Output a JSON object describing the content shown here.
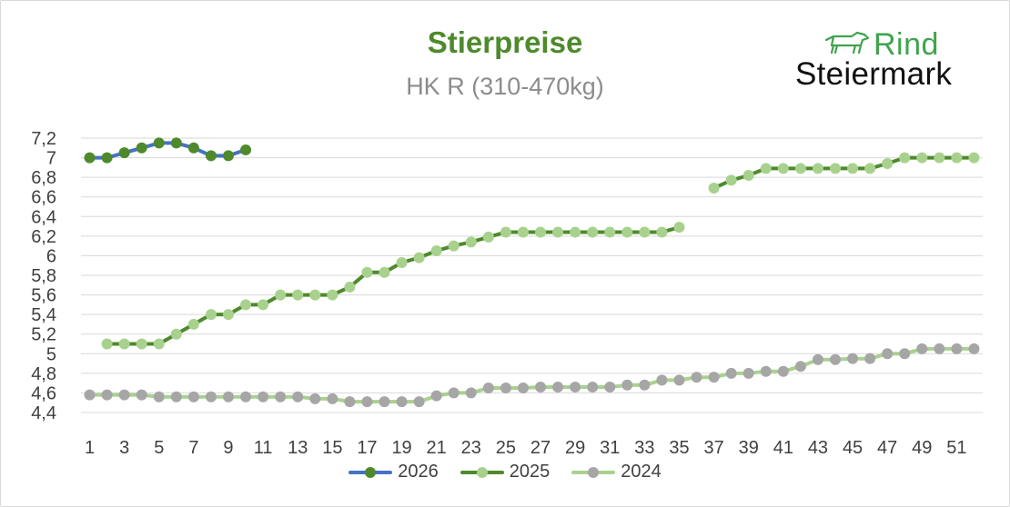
{
  "chart_data": {
    "type": "line",
    "title": "Stierpreise",
    "subtitle": "HK R (310-470kg)",
    "xlabel": "",
    "ylabel": "",
    "x": [
      1,
      2,
      3,
      4,
      5,
      6,
      7,
      8,
      9,
      10,
      11,
      12,
      13,
      14,
      15,
      16,
      17,
      18,
      19,
      20,
      21,
      22,
      23,
      24,
      25,
      26,
      27,
      28,
      29,
      30,
      31,
      32,
      33,
      34,
      35,
      36,
      37,
      38,
      39,
      40,
      41,
      42,
      43,
      44,
      45,
      46,
      47,
      48,
      49,
      50,
      51,
      52
    ],
    "x_tick_labels": [
      "1",
      "3",
      "5",
      "7",
      "9",
      "11",
      "13",
      "15",
      "17",
      "19",
      "21",
      "23",
      "25",
      "27",
      "29",
      "31",
      "33",
      "35",
      "37",
      "39",
      "41",
      "43",
      "45",
      "47",
      "49",
      "51"
    ],
    "y_tick_labels": [
      "4,4",
      "4,6",
      "4,8",
      "5",
      "5,2",
      "5,4",
      "5,6",
      "5,8",
      "6",
      "6,2",
      "6,4",
      "6,6",
      "6,8",
      "7",
      "7,2"
    ],
    "ylim": [
      4.4,
      7.2
    ],
    "grid": true,
    "legend_position": "bottom",
    "series": [
      {
        "name": "2026",
        "line_color": "#4472c4",
        "marker_color": "#4e8a2c",
        "values": [
          7.0,
          7.0,
          7.05,
          7.1,
          7.15,
          7.15,
          7.1,
          7.02,
          7.02,
          7.08,
          null,
          null,
          null,
          null,
          null,
          null,
          null,
          null,
          null,
          null,
          null,
          null,
          null,
          null,
          null,
          null,
          null,
          null,
          null,
          null,
          null,
          null,
          null,
          null,
          null,
          null,
          null,
          null,
          null,
          null,
          null,
          null,
          null,
          null,
          null,
          null,
          null,
          null,
          null,
          null,
          null,
          null
        ]
      },
      {
        "name": "2025",
        "line_color": "#4e8a2c",
        "marker_color": "#a9d18e",
        "values": [
          null,
          5.1,
          5.1,
          5.1,
          5.1,
          5.2,
          5.3,
          5.4,
          5.4,
          5.5,
          5.5,
          5.6,
          5.6,
          5.6,
          5.6,
          5.68,
          5.83,
          5.83,
          5.93,
          5.98,
          6.05,
          6.1,
          6.14,
          6.19,
          6.24,
          6.24,
          6.24,
          6.24,
          6.24,
          6.24,
          6.24,
          6.24,
          6.24,
          6.24,
          6.29,
          null,
          6.69,
          6.77,
          6.82,
          6.89,
          6.89,
          6.89,
          6.89,
          6.89,
          6.89,
          6.89,
          6.94,
          7.0,
          7.0,
          7.0,
          7.0,
          7.0
        ]
      },
      {
        "name": "2024",
        "line_color": "#a9d18e",
        "marker_color": "#a6a6a6",
        "values": [
          4.58,
          4.58,
          4.58,
          4.58,
          4.56,
          4.56,
          4.56,
          4.56,
          4.56,
          4.56,
          4.56,
          4.56,
          4.56,
          4.54,
          4.54,
          4.51,
          4.51,
          4.51,
          4.51,
          4.51,
          4.57,
          4.6,
          4.6,
          4.65,
          4.65,
          4.65,
          4.66,
          4.66,
          4.66,
          4.66,
          4.66,
          4.68,
          4.68,
          4.73,
          4.73,
          4.76,
          4.76,
          4.8,
          4.8,
          4.82,
          4.82,
          4.87,
          4.94,
          4.94,
          4.95,
          4.95,
          5.0,
          5.0,
          5.05,
          5.05,
          5.05,
          5.05
        ]
      }
    ]
  },
  "logo": {
    "word1": "Rind",
    "word2": "Steiermark",
    "icon": "cow-outline-icon",
    "color": "#3fa34d"
  }
}
